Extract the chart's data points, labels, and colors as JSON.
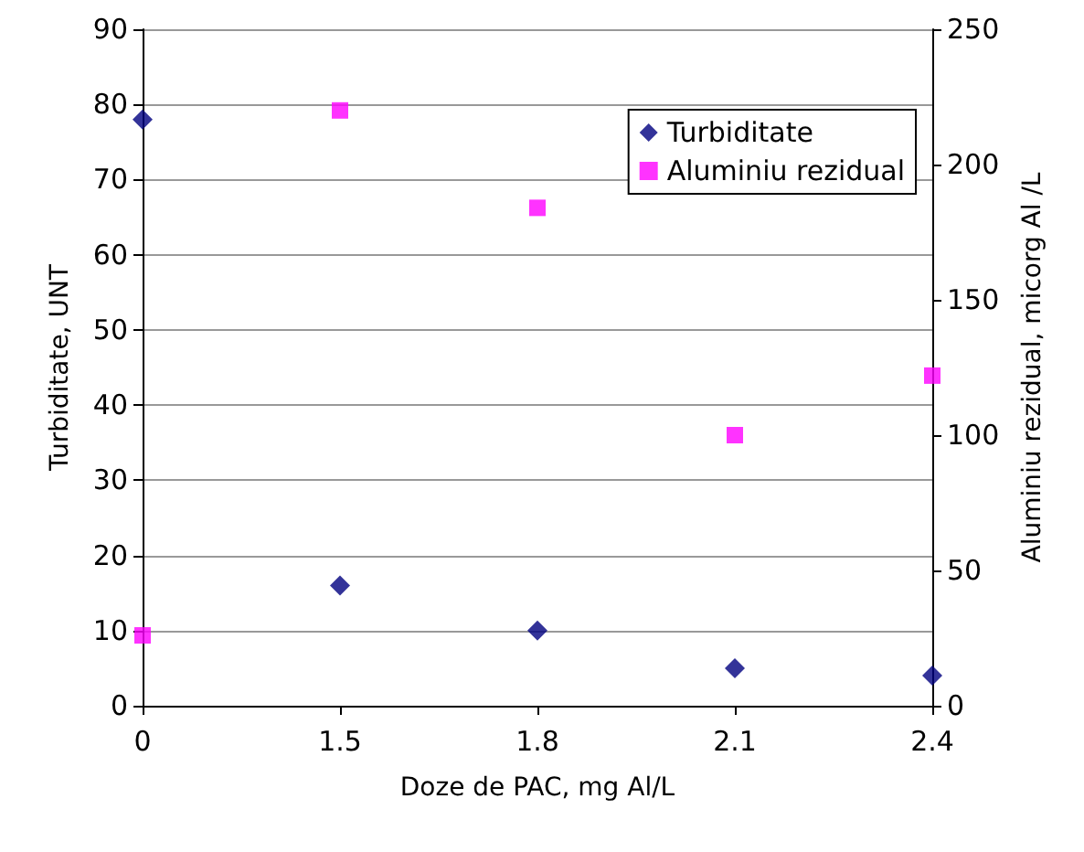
{
  "chart_data": {
    "type": "scatter",
    "xlabel": "Doze de PAC, mg Al/L",
    "ylabel": "Turbiditate, UNT",
    "y2label": "Aluminiu rezidual, micorg Al /L",
    "categories": [
      "0",
      "1.5",
      "1.8",
      "2.1",
      "2.4"
    ],
    "series": [
      {
        "name": "Turbiditate",
        "color": "#000080",
        "marker": "diamond",
        "values": [
          78,
          16,
          10,
          5,
          4
        ]
      },
      {
        "name": "Aluminiu rezidual",
        "color": "#ff00ff",
        "marker": "square",
        "axis": "y2",
        "values": [
          26,
          220,
          184,
          100,
          122
        ]
      }
    ],
    "ylim": [
      0,
      90
    ],
    "yticks": [
      0,
      10,
      20,
      30,
      40,
      50,
      60,
      70,
      80,
      90
    ],
    "y2lim": [
      0,
      250
    ],
    "y2ticks": [
      0,
      50,
      100,
      150,
      200,
      250
    ],
    "grid": "y",
    "legend": "top right"
  }
}
